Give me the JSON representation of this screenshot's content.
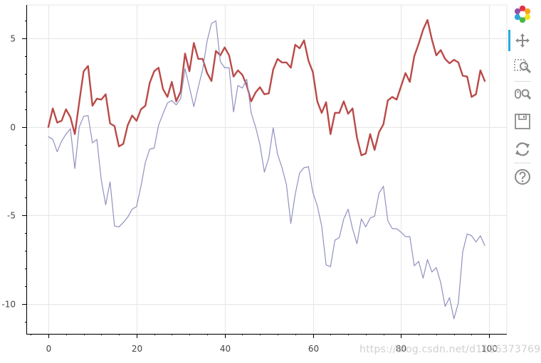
{
  "chart_data": {
    "type": "line",
    "xlabel": "",
    "ylabel": "",
    "xlim": [
      -5,
      104
    ],
    "ylim": [
      -11.7,
      6.9
    ],
    "x_ticks": [
      0,
      20,
      40,
      60,
      80,
      100
    ],
    "x_tick_labels": [
      "0",
      "20",
      "40",
      "60",
      "80",
      "100"
    ],
    "y_ticks": [
      5,
      0,
      -5,
      -10
    ],
    "y_tick_labels": [
      "5",
      "0",
      "-5",
      "-10"
    ],
    "grid": true,
    "legend": "none",
    "series": [
      {
        "color": "#b94a48",
        "line_width": "thick",
        "x": [
          0,
          1,
          2,
          3,
          4,
          5,
          6,
          7,
          8,
          9,
          10,
          11,
          12,
          13,
          14,
          15,
          16,
          17,
          18,
          19,
          20,
          21,
          22,
          23,
          24,
          25,
          26,
          27,
          28,
          29,
          30,
          31,
          32,
          33,
          34,
          35,
          36,
          37,
          38,
          39,
          40,
          41,
          42,
          43,
          44,
          45,
          46,
          47,
          48,
          49,
          50,
          51,
          52,
          53,
          54,
          55,
          56,
          57,
          58,
          59,
          60,
          61,
          62,
          63,
          64,
          65,
          66,
          67,
          68,
          69,
          70,
          71,
          72,
          73,
          74,
          75,
          76,
          77,
          78,
          79,
          80,
          81,
          82,
          83,
          84,
          85,
          86,
          87,
          88,
          89,
          90,
          91,
          92,
          93,
          94,
          95,
          96,
          97,
          98,
          99
        ],
        "values": [
          0.0,
          1.05,
          0.25,
          0.35,
          1.0,
          0.55,
          -0.4,
          1.4,
          3.15,
          3.45,
          1.2,
          1.6,
          1.55,
          1.85,
          0.2,
          0.05,
          -1.1,
          -0.95,
          0.1,
          0.65,
          0.35,
          1.0,
          1.2,
          2.5,
          3.15,
          3.35,
          2.15,
          1.7,
          2.55,
          1.45,
          2.0,
          4.15,
          3.15,
          4.75,
          3.85,
          3.85,
          3.05,
          2.6,
          4.3,
          4.05,
          4.5,
          4.05,
          2.85,
          3.2,
          2.95,
          2.35,
          1.45,
          1.95,
          2.25,
          1.85,
          1.9,
          3.25,
          3.85,
          3.65,
          3.65,
          3.35,
          4.65,
          4.45,
          4.9,
          3.75,
          3.1,
          1.45,
          0.8,
          1.4,
          -0.4,
          0.8,
          0.8,
          1.45,
          0.75,
          1.05,
          -0.6,
          -1.6,
          -1.5,
          -0.4,
          -1.3,
          -0.3,
          0.15,
          1.5,
          1.7,
          1.55,
          2.3,
          3.05,
          2.55,
          4.0,
          4.7,
          5.5,
          6.05,
          4.95,
          4.05,
          4.35,
          3.85,
          3.6,
          3.8,
          3.65,
          2.9,
          2.85,
          1.7,
          1.85,
          3.2,
          2.6
        ]
      },
      {
        "color": "#9090c0",
        "line_width": "thin",
        "x": [
          0,
          1,
          2,
          3,
          4,
          5,
          6,
          7,
          8,
          9,
          10,
          11,
          12,
          13,
          14,
          15,
          16,
          17,
          18,
          19,
          20,
          21,
          22,
          23,
          24,
          25,
          26,
          27,
          28,
          29,
          30,
          31,
          32,
          33,
          34,
          35,
          36,
          37,
          38,
          39,
          40,
          41,
          42,
          43,
          44,
          45,
          46,
          47,
          48,
          49,
          50,
          51,
          52,
          53,
          54,
          55,
          56,
          57,
          58,
          59,
          60,
          61,
          62,
          63,
          64,
          65,
          66,
          67,
          68,
          69,
          70,
          71,
          72,
          73,
          74,
          75,
          76,
          77,
          78,
          79,
          80,
          81,
          82,
          83,
          84,
          85,
          86,
          87,
          88,
          89,
          90,
          91,
          92,
          93,
          94,
          95,
          96,
          97,
          98,
          99
        ],
        "values": [
          -0.55,
          -0.7,
          -1.4,
          -0.8,
          -0.4,
          -0.1,
          -2.35,
          0.0,
          0.6,
          0.65,
          -0.9,
          -0.7,
          -3.0,
          -4.4,
          -3.1,
          -5.6,
          -5.65,
          -5.4,
          -5.1,
          -4.65,
          -4.5,
          -3.35,
          -2.0,
          -1.25,
          -1.2,
          0.1,
          0.75,
          1.35,
          1.5,
          1.25,
          1.6,
          3.3,
          2.25,
          1.15,
          2.25,
          3.25,
          4.85,
          5.85,
          6.0,
          3.7,
          3.35,
          3.35,
          0.85,
          2.35,
          2.2,
          2.7,
          0.8,
          0.0,
          -1.0,
          -2.55,
          -1.75,
          -0.05,
          -1.55,
          -2.3,
          -3.25,
          -5.45,
          -3.8,
          -2.6,
          -2.3,
          -2.25,
          -3.7,
          -4.45,
          -5.6,
          -7.8,
          -7.9,
          -6.4,
          -6.25,
          -5.2,
          -4.65,
          -5.75,
          -6.6,
          -5.2,
          -5.65,
          -5.15,
          -5.05,
          -3.75,
          -3.35,
          -5.3,
          -5.75,
          -5.75,
          -5.95,
          -6.2,
          -6.2,
          -7.85,
          -7.6,
          -8.55,
          -7.5,
          -8.2,
          -7.95,
          -8.8,
          -10.15,
          -9.65,
          -10.85,
          -9.95,
          -7.05,
          -6.05,
          -6.15,
          -6.5,
          -6.15,
          -6.7
        ]
      }
    ]
  },
  "toolbar": {
    "items": [
      {
        "name": "bokeh-logo",
        "active": false
      },
      {
        "name": "pan-tool",
        "active": true
      },
      {
        "name": "box-zoom-tool",
        "active": false
      },
      {
        "name": "wheel-zoom-tool",
        "active": false
      },
      {
        "name": "save-tool",
        "active": false
      },
      {
        "name": "reset-tool",
        "active": false
      },
      {
        "name": "help-tool",
        "active": false
      }
    ]
  },
  "watermark": "https://blog.csdn.net/d1126373769"
}
